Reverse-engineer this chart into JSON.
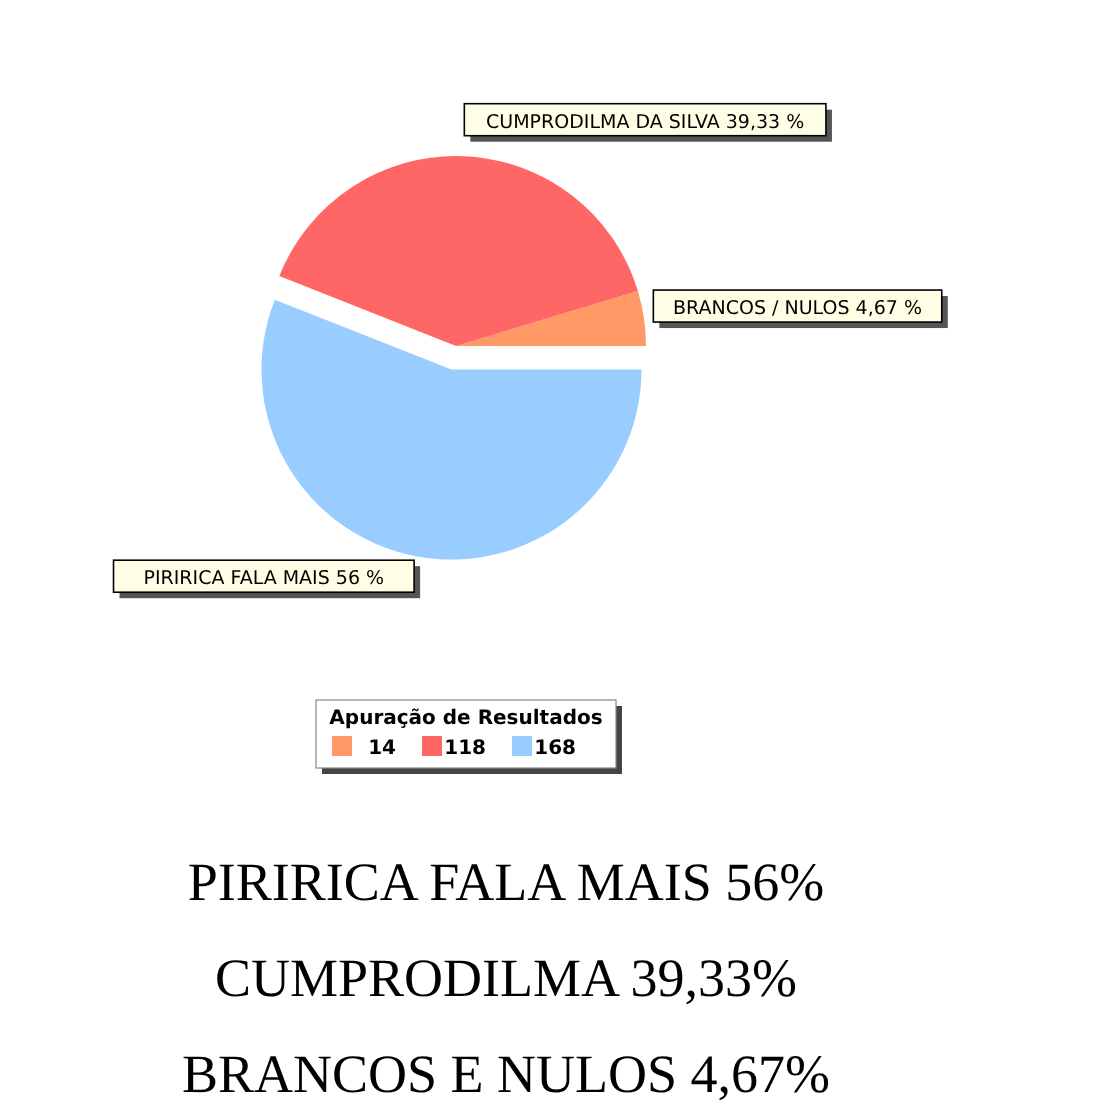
{
  "chart_data": {
    "type": "pie",
    "legend_title": "Apuração de Resultados",
    "categories": [
      "14",
      "118",
      "168"
    ],
    "values": [
      4.67,
      39.33,
      56
    ],
    "value_labels": [
      "BRANCOS / NULOS 4,67 %",
      "CUMPRODILMA DA SILVA 39,33 %",
      "PIRIRICA FALA MAIS 56 %"
    ],
    "colors": [
      "#ff9966",
      "#ff6666",
      "#99ccff"
    ],
    "legend": "bottom",
    "annotations": [
      "PIRIRICA FALA MAIS 56%",
      "CUMPRODILMA 39,33%",
      "BRANCOS E NULOS 4,67%"
    ]
  }
}
